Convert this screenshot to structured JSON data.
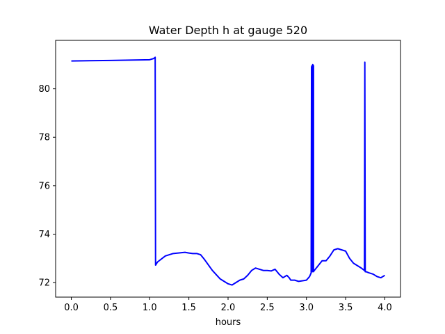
{
  "chart_data": {
    "type": "line",
    "title": "Water Depth h at gauge 520",
    "xlabel": "hours",
    "ylabel": "",
    "xlim": [
      -0.2,
      4.2
    ],
    "ylim": [
      71.4,
      82.0
    ],
    "xticks": [
      0.0,
      0.5,
      1.0,
      1.5,
      2.0,
      2.5,
      3.0,
      3.5,
      4.0
    ],
    "xtick_labels": [
      "0.0",
      "0.5",
      "1.0",
      "1.5",
      "2.0",
      "2.5",
      "3.0",
      "3.5",
      "4.0"
    ],
    "yticks": [
      72,
      74,
      76,
      78,
      80
    ],
    "ytick_labels": [
      "72",
      "74",
      "76",
      "78",
      "80"
    ],
    "grid": false,
    "series": [
      {
        "color": "#0000ff",
        "x": [
          0.0,
          0.5,
          1.0,
          1.05,
          1.07,
          1.075,
          1.1,
          1.2,
          1.3,
          1.45,
          1.5,
          1.55,
          1.6,
          1.65,
          1.7,
          1.8,
          1.9,
          2.0,
          2.05,
          2.1,
          2.15,
          2.2,
          2.25,
          2.3,
          2.35,
          2.4,
          2.45,
          2.5,
          2.55,
          2.6,
          2.65,
          2.7,
          2.75,
          2.78,
          2.8,
          2.85,
          2.9,
          3.0,
          3.04,
          3.06,
          3.065,
          3.07,
          3.07,
          3.075,
          3.08,
          3.09,
          3.09,
          3.1,
          3.15,
          3.2,
          3.25,
          3.3,
          3.35,
          3.4,
          3.45,
          3.5,
          3.55,
          3.6,
          3.7,
          3.74,
          3.745,
          3.75,
          3.76,
          3.8,
          3.85,
          3.9,
          3.95,
          4.0
        ],
        "y": [
          81.15,
          81.17,
          81.2,
          81.25,
          81.3,
          72.72,
          72.85,
          73.1,
          73.2,
          73.25,
          73.22,
          73.2,
          73.2,
          73.15,
          72.95,
          72.5,
          72.15,
          71.95,
          71.9,
          72.0,
          72.1,
          72.15,
          72.3,
          72.5,
          72.6,
          72.55,
          72.5,
          72.5,
          72.48,
          72.55,
          72.35,
          72.2,
          72.3,
          72.2,
          72.1,
          72.1,
          72.05,
          72.1,
          72.25,
          72.4,
          80.9,
          80.95,
          72.45,
          72.45,
          81.0,
          80.95,
          72.45,
          72.5,
          72.7,
          72.9,
          72.9,
          73.1,
          73.35,
          73.4,
          73.35,
          73.3,
          73.0,
          72.8,
          72.6,
          72.5,
          81.1,
          72.45,
          72.45,
          72.4,
          72.35,
          72.25,
          72.2,
          72.3
        ]
      }
    ]
  }
}
